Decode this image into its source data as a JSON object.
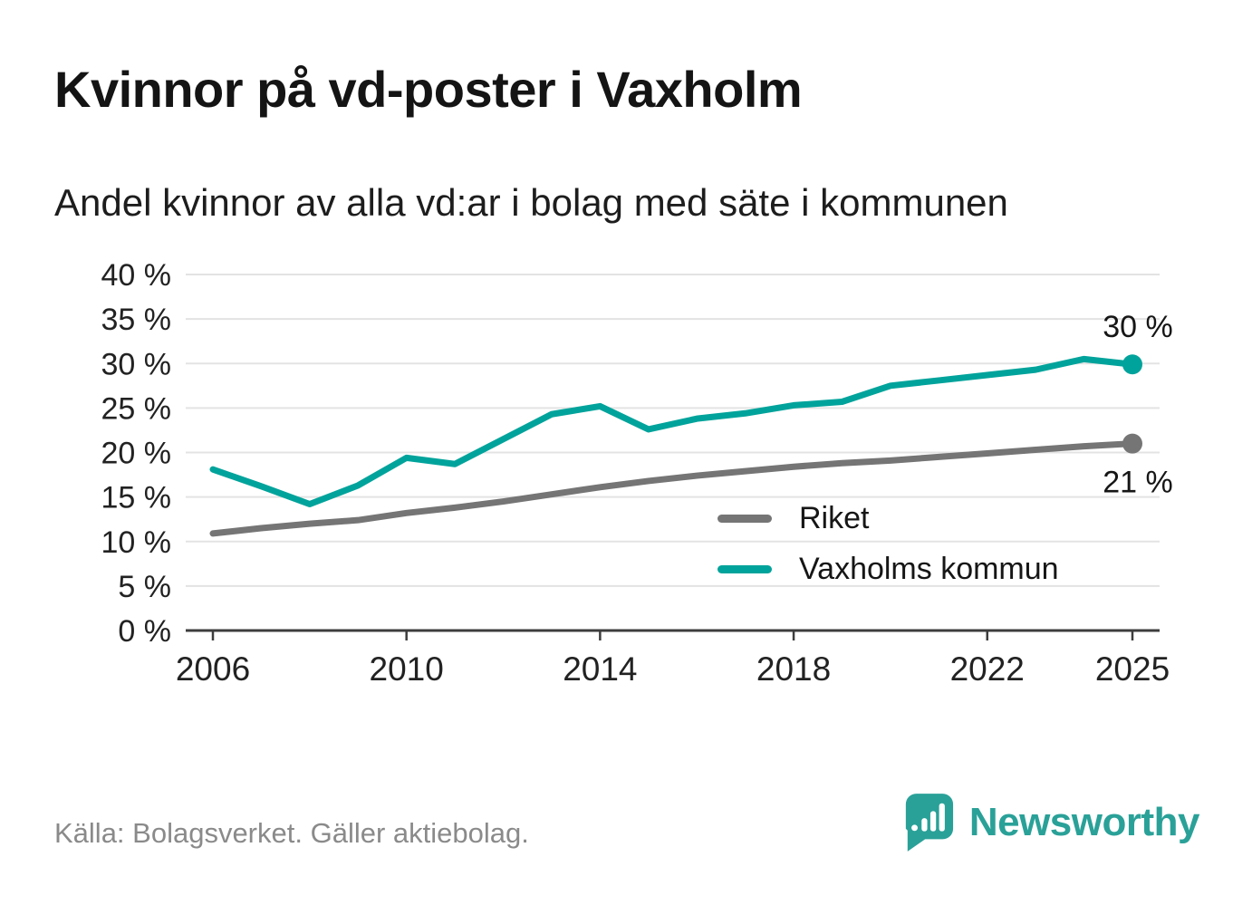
{
  "page": {
    "title": "Kvinnor på vd-poster i Vaxholm",
    "subtitle": "Andel kvinnor av alla vd:ar i bolag med säte i kommunen",
    "source": "Källa: Bolagsverket. Gäller aktiebolag.",
    "brand": {
      "name": "Newsworthy",
      "color": "#2aa198",
      "icon": "bar-chart-speech-bubble-icon"
    }
  },
  "chart_data": {
    "type": "line",
    "title": "Kvinnor på vd-poster i Vaxholm",
    "subtitle": "Andel kvinnor av alla vd:ar i bolag med säte i kommunen",
    "x": [
      2006,
      2007,
      2008,
      2009,
      2010,
      2011,
      2012,
      2013,
      2014,
      2015,
      2016,
      2017,
      2018,
      2019,
      2020,
      2021,
      2022,
      2023,
      2024,
      2025
    ],
    "series": [
      {
        "name": "Riket",
        "color": "#757575",
        "end_label": "21 %",
        "end_label_position": "below",
        "values": [
          10.9,
          11.5,
          12.0,
          12.4,
          13.2,
          13.8,
          14.5,
          15.3,
          16.1,
          16.8,
          17.4,
          17.9,
          18.4,
          18.8,
          19.1,
          19.5,
          19.9,
          20.3,
          20.7,
          21.0
        ]
      },
      {
        "name": "Vaxholms kommun",
        "color": "#00a39b",
        "end_label": "30 %",
        "end_label_position": "above",
        "values": [
          18.1,
          16.2,
          14.2,
          16.3,
          19.4,
          18.7,
          21.5,
          24.3,
          25.2,
          22.6,
          23.8,
          24.4,
          25.3,
          25.7,
          27.5,
          28.1,
          28.7,
          29.3,
          30.5,
          29.9
        ]
      }
    ],
    "ylim": [
      0,
      40
    ],
    "yticks": [
      0,
      5,
      10,
      15,
      20,
      25,
      30,
      35,
      40
    ],
    "ytick_format": "{v} %",
    "xticks": [
      2006,
      2010,
      2014,
      2018,
      2022,
      2025
    ],
    "grid": "horizontal",
    "legend_position": "inside-right",
    "xlabel": "",
    "ylabel": ""
  }
}
